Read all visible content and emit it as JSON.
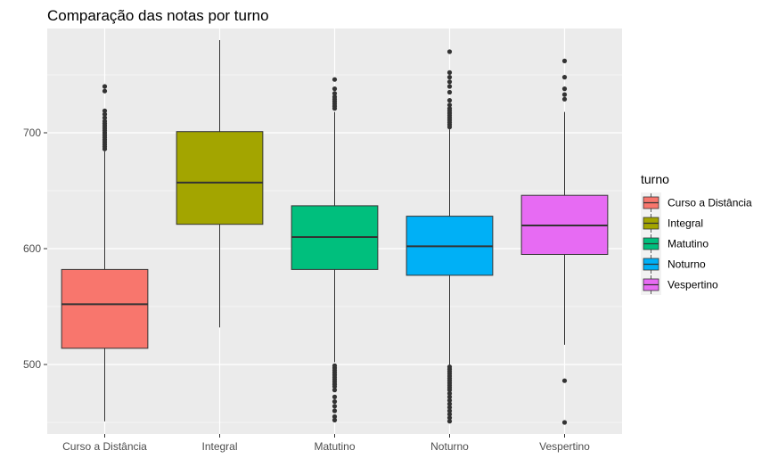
{
  "chart_data": {
    "type": "boxplot",
    "title": "Comparação das notas por turno",
    "xlabel": "",
    "ylabel": "",
    "ylim": [
      440,
      790
    ],
    "y_ticks": [
      500,
      600,
      700
    ],
    "y_tick_labels": [
      "500",
      "600",
      "700"
    ],
    "grid": true,
    "background": "#EBEBEB",
    "legend": {
      "title": "turno",
      "position": "right"
    },
    "categories": [
      "Curso a Distância",
      "Integral",
      "Matutino",
      "Noturno",
      "Vespertino"
    ],
    "series": [
      {
        "name": "Curso a Distância",
        "color": "#F8766D",
        "whisker_low": 451,
        "q1": 514,
        "median": 552,
        "q3": 582,
        "whisker_high": 684,
        "outliers": [
          686,
          688,
          690,
          692,
          694,
          696,
          698,
          700,
          702,
          704,
          706,
          708,
          710,
          713,
          716,
          719,
          736,
          740
        ]
      },
      {
        "name": "Integral",
        "color": "#A3A500",
        "whisker_low": 532,
        "q1": 621,
        "median": 657,
        "q3": 701,
        "whisker_high": 780,
        "outliers": []
      },
      {
        "name": "Matutino",
        "color": "#00BF7D",
        "whisker_low": 502,
        "q1": 582,
        "median": 610,
        "q3": 637,
        "whisker_high": 718,
        "outliers": [
          452,
          455,
          460,
          464,
          468,
          472,
          478,
          481,
          483,
          485,
          487,
          489,
          491,
          493,
          495,
          497,
          499,
          721,
          723,
          725,
          727,
          729,
          731,
          734,
          738,
          746
        ]
      },
      {
        "name": "Noturno",
        "color": "#00B0F6",
        "whisker_low": 500,
        "q1": 577,
        "median": 602,
        "q3": 628,
        "whisker_high": 703,
        "outliers": [
          451,
          454,
          457,
          460,
          463,
          466,
          469,
          472,
          475,
          478,
          480,
          482,
          484,
          486,
          488,
          490,
          492,
          494,
          496,
          498,
          705,
          707,
          709,
          711,
          713,
          715,
          717,
          719,
          721,
          724,
          728,
          735,
          740,
          744,
          748,
          752,
          770
        ]
      },
      {
        "name": "Vespertino",
        "color": "#E76BF3",
        "whisker_low": 517,
        "q1": 595,
        "median": 620,
        "q3": 646,
        "whisker_high": 718,
        "outliers": [
          450,
          486,
          729,
          733,
          738,
          748,
          762
        ]
      }
    ]
  }
}
